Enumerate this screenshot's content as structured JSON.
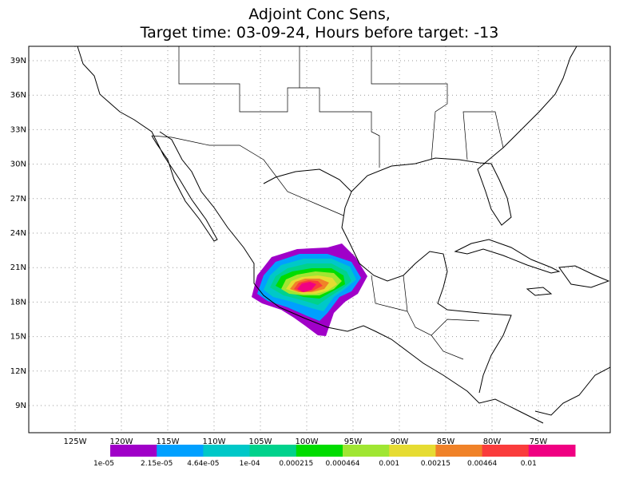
{
  "title": [
    "Adjoint Conc Sens,",
    "Target time: 03-09-24, Hours before target: -13"
  ],
  "lat_labels": [
    "39N",
    "36N",
    "33N",
    "30N",
    "27N",
    "24N",
    "21N",
    "18N",
    "15N",
    "12N",
    "9N"
  ],
  "lon_labels": [
    "125W",
    "120W",
    "115W",
    "110W",
    "105W",
    "100W",
    "95W",
    "90W",
    "85W",
    "80W",
    "75W"
  ],
  "colorbar": {
    "colors": [
      "#a000c8",
      "#00a0ff",
      "#00c8c8",
      "#00d28c",
      "#00dc00",
      "#a0e632",
      "#e6dc32",
      "#f08228",
      "#fa3c3c",
      "#f00082"
    ],
    "labels": [
      "1e-05",
      "2.15e-05",
      "4.64e-05",
      "1e-04",
      "0.000215",
      "0.000464",
      "0.001",
      "0.00215",
      "0.00464",
      "0.01"
    ]
  }
}
